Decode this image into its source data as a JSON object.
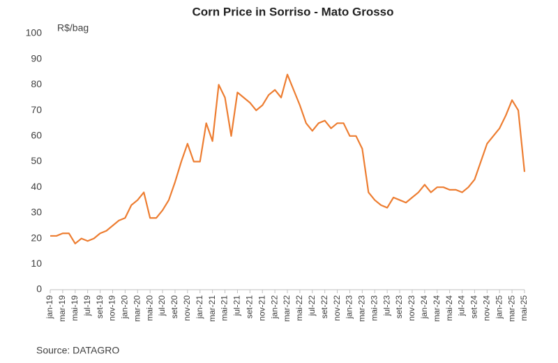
{
  "chart_data": {
    "type": "line",
    "title": "Corn Price in Sorriso - Mato Grosso",
    "y_label": "R$/bag",
    "source": "Source: DATAGRO",
    "categories": [
      "jan-19",
      null,
      "mar-19",
      null,
      "mai-19",
      null,
      "jul-19",
      null,
      "set-19",
      null,
      "nov-19",
      null,
      "jan-20",
      null,
      "mar-20",
      null,
      "mai-20",
      null,
      "jul-20",
      null,
      "set-20",
      null,
      "nov-20",
      null,
      "jan-21",
      null,
      "mar-21",
      null,
      "mai-21",
      null,
      "jul-21",
      null,
      "set-21",
      null,
      "nov-21",
      null,
      "jan-22",
      null,
      "mar-22",
      null,
      "mai-22",
      null,
      "jul-22",
      null,
      "set-22",
      null,
      "nov-22",
      null,
      "jan-23",
      null,
      "mar-23",
      null,
      "mai-23",
      null,
      "jul-23",
      null,
      "set-23",
      null,
      "nov-23",
      null,
      "jan-24",
      null,
      "mar-24",
      null,
      "mai-24",
      null,
      "jul-24",
      null,
      "set-24",
      null,
      "nov-24",
      null,
      "jan-25",
      null,
      "mar-25",
      null,
      "mai-25"
    ],
    "series": [
      {
        "color": "#ed7d31",
        "values": [
          21,
          21,
          22,
          22,
          18,
          20,
          19,
          20,
          22,
          23,
          25,
          27,
          28,
          33,
          35,
          38,
          28,
          28,
          31,
          35,
          42,
          50,
          57,
          50,
          50,
          65,
          58,
          80,
          75,
          60,
          77,
          75,
          73,
          70,
          72,
          76,
          78,
          75,
          84,
          78,
          72,
          65,
          62,
          65,
          66,
          63,
          65,
          65,
          60,
          60,
          55,
          38,
          35,
          33,
          32,
          36,
          35,
          34,
          36,
          38,
          41,
          38,
          40,
          40,
          39,
          39,
          38,
          40,
          43,
          50,
          57,
          60,
          63,
          68,
          74,
          70,
          46
        ]
      }
    ],
    "ylim": [
      0,
      100
    ],
    "yticks": [
      0,
      10,
      20,
      30,
      40,
      50,
      60,
      70,
      80,
      90,
      100
    ],
    "grid": false
  }
}
